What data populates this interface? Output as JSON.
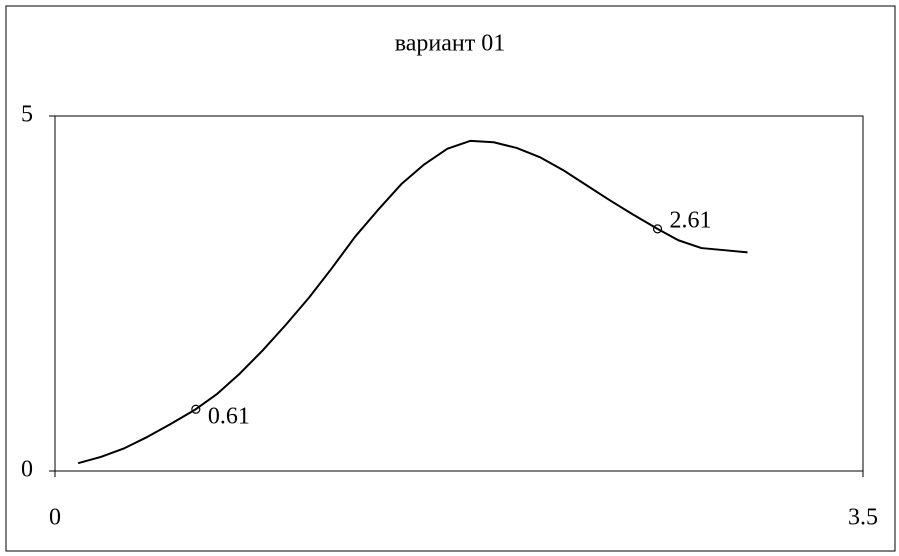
{
  "chart_data": {
    "type": "line",
    "title": "вариант 01",
    "x": [
      0.1,
      0.2,
      0.3,
      0.4,
      0.5,
      0.61,
      0.7,
      0.8,
      0.9,
      1.0,
      1.1,
      1.2,
      1.3,
      1.4,
      1.5,
      1.6,
      1.7,
      1.8,
      1.9,
      2.0,
      2.1,
      2.2,
      2.3,
      2.4,
      2.5,
      2.61,
      2.7,
      2.8,
      2.9,
      3.0
    ],
    "values": [
      0.11,
      0.2,
      0.32,
      0.48,
      0.66,
      0.87,
      1.08,
      1.37,
      1.7,
      2.06,
      2.44,
      2.86,
      3.3,
      3.68,
      4.04,
      4.32,
      4.54,
      4.65,
      4.63,
      4.55,
      4.42,
      4.24,
      4.03,
      3.82,
      3.62,
      3.41,
      3.25,
      3.14,
      3.11,
      3.08
    ],
    "color": "#000000",
    "annotations": [
      {
        "x": 0.61,
        "y": 0.87
      },
      {
        "x": 2.61,
        "y": 3.41
      }
    ],
    "xlim": [
      0,
      3.5
    ],
    "xticks": [
      0,
      3.5
    ],
    "ylim": [
      0,
      5
    ],
    "yticks": [
      0,
      5
    ],
    "grid": false
  }
}
